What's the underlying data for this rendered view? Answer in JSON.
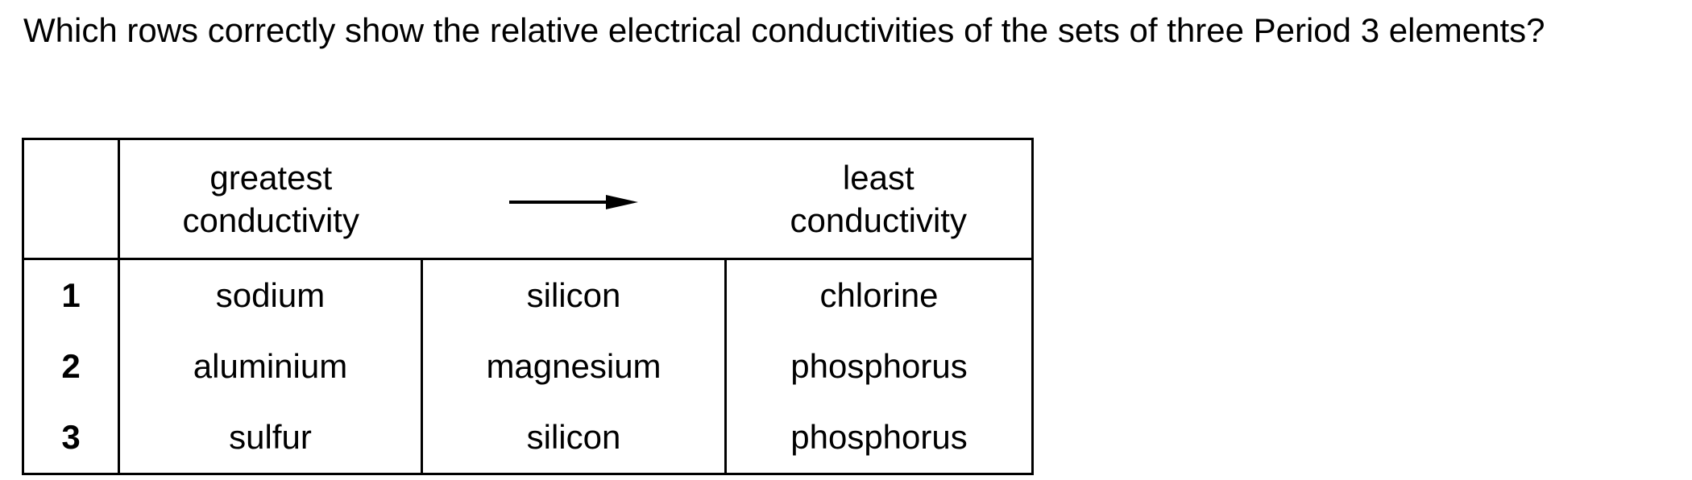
{
  "question": "Which rows correctly show the relative electrical conductivities of the sets of three Period 3 elements?",
  "table": {
    "header": {
      "greatest_line1": "greatest",
      "greatest_line2": "conductivity",
      "least_line1": "least",
      "least_line2": "conductivity",
      "arrow_icon": "arrow-right-icon"
    },
    "rows": [
      {
        "num": "1",
        "a": "sodium",
        "b": "silicon",
        "c": "chlorine"
      },
      {
        "num": "2",
        "a": "aluminium",
        "b": "magnesium",
        "c": "phosphorus"
      },
      {
        "num": "3",
        "a": "sulfur",
        "b": "silicon",
        "c": "phosphorus"
      }
    ]
  }
}
